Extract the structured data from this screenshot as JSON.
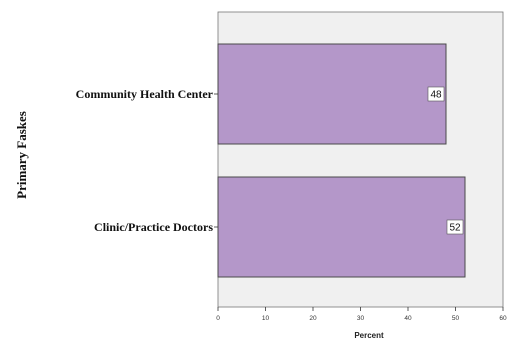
{
  "chart_data": {
    "type": "bar",
    "orientation": "horizontal",
    "categories": [
      "Community Health Center",
      "Clinic/Practice Doctors"
    ],
    "values": [
      48,
      52
    ],
    "data_labels": [
      "48",
      "52"
    ],
    "title": "",
    "xlabel": "Percent",
    "ylabel": "Primary Faskes",
    "xlim": [
      0,
      60
    ],
    "x_ticks": [
      "0",
      "10",
      "20",
      "30",
      "40",
      "50",
      "60"
    ],
    "grid": false,
    "legend": "none",
    "colors": {
      "bar_fill": "#b497c9",
      "bar_stroke": "#4a4a4a",
      "plot_background": "#f0f0f0",
      "label_box": "#ffffff"
    }
  }
}
